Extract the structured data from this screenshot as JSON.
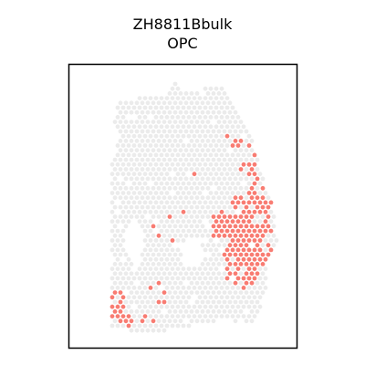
{
  "chart_data": {
    "type": "scatter",
    "title": "ZH8811Bbulk",
    "subtitle": "OPC",
    "xlabel": "",
    "ylabel": "",
    "grid": false,
    "legend": "none",
    "axes_ticks": false,
    "colors": {
      "background_spots": "#ebebeb",
      "highlighted_spots": "#f87c72",
      "frame": "#000000"
    },
    "series": [
      {
        "role": "background",
        "region": {
          "outline": [
            [
              0.12,
              0.96
            ],
            [
              0.12,
              0.3
            ],
            [
              0.16,
              0.22
            ],
            [
              0.13,
              0.14
            ],
            [
              0.16,
              0.06
            ],
            [
              0.38,
              0.05
            ],
            [
              0.42,
              -0.01
            ],
            [
              0.5,
              0.03
            ],
            [
              0.66,
              0.0
            ],
            [
              0.7,
              0.04
            ],
            [
              0.76,
              0.13
            ],
            [
              0.82,
              0.22
            ],
            [
              0.87,
              0.36
            ],
            [
              0.93,
              0.5
            ],
            [
              0.95,
              0.62
            ],
            [
              0.9,
              0.69
            ],
            [
              0.88,
              0.86
            ],
            [
              0.82,
              0.94
            ],
            [
              0.68,
              0.92
            ],
            [
              0.48,
              0.96
            ],
            [
              0.3,
              0.97
            ]
          ],
          "holes": [
            [
              [
                0.18,
                0.58
              ],
              [
                0.24,
                0.52
              ],
              [
                0.28,
                0.6
              ],
              [
                0.26,
                0.7
              ],
              [
                0.2,
                0.68
              ]
            ],
            [
              [
                0.46,
                0.62
              ],
              [
                0.56,
                0.6
              ],
              [
                0.58,
                0.7
              ],
              [
                0.48,
                0.72
              ]
            ]
          ]
        }
      },
      {
        "role": "highlighted",
        "clusters": [
          {
            "center": [
              0.75,
              0.54
            ],
            "radius": [
              0.1,
              0.1
            ],
            "density": 0.88
          },
          {
            "center": [
              0.82,
              0.6
            ],
            "radius": [
              0.11,
              0.13
            ],
            "density": 0.9
          },
          {
            "center": [
              0.77,
              0.7
            ],
            "radius": [
              0.1,
              0.1
            ],
            "density": 0.85
          },
          {
            "center": [
              0.68,
              0.56
            ],
            "radius": [
              0.08,
              0.06
            ],
            "density": 0.75
          },
          {
            "center": [
              0.86,
              0.42
            ],
            "radius": [
              0.06,
              0.12
            ],
            "density": 0.7
          },
          {
            "center": [
              0.8,
              0.3
            ],
            "radius": [
              0.05,
              0.06
            ],
            "density": 0.45
          },
          {
            "center": [
              0.74,
              0.2
            ],
            "radius": [
              0.06,
              0.05
            ],
            "density": 0.25
          },
          {
            "center": [
              0.14,
              0.86
            ],
            "radius": [
              0.05,
              0.06
            ],
            "density": 0.6
          },
          {
            "center": [
              0.18,
              0.93
            ],
            "radius": [
              0.06,
              0.03
            ],
            "density": 0.7
          },
          {
            "center": [
              0.28,
              0.92
            ],
            "radius": [
              0.05,
              0.03
            ],
            "density": 0.45
          },
          {
            "center": [
              0.34,
              0.82
            ],
            "radius": [
              0.06,
              0.05
            ],
            "density": 0.2
          },
          {
            "center": [
              0.58,
              0.36
            ],
            "radius": [
              0.06,
              0.08
            ],
            "density": 0.12
          },
          {
            "center": [
              0.42,
              0.55
            ],
            "radius": [
              0.12,
              0.08
            ],
            "density": 0.05
          }
        ]
      }
    ]
  }
}
